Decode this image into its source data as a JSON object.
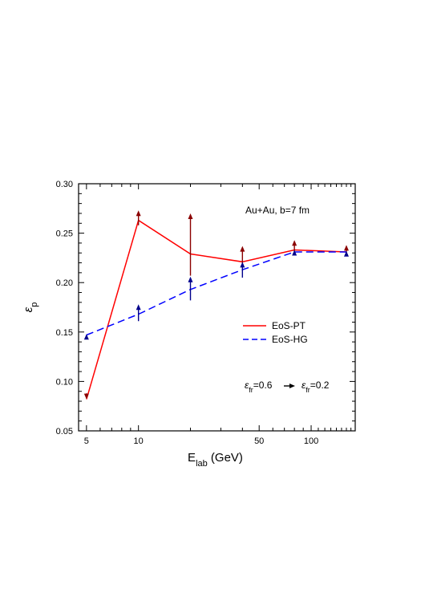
{
  "chart_data": {
    "type": "line",
    "xscale": "log",
    "xlim": [
      4.5,
      180
    ],
    "ylim": [
      0.05,
      0.3
    ],
    "xlabel": {
      "main": "E",
      "sub": "lab",
      "rest": " (GeV)"
    },
    "ylabel": {
      "main": "ε",
      "sub": "p"
    },
    "x_tick_labels": [
      {
        "value": 5,
        "label": "5"
      },
      {
        "value": 10,
        "label": "10"
      },
      {
        "value": 50,
        "label": "50"
      },
      {
        "value": 100,
        "label": "100"
      }
    ],
    "y_tick_labels": [
      {
        "value": 0.05,
        "label": "0.05"
      },
      {
        "value": 0.1,
        "label": "0.10"
      },
      {
        "value": 0.15,
        "label": "0.15"
      },
      {
        "value": 0.2,
        "label": "0.20"
      },
      {
        "value": 0.25,
        "label": "0.25"
      },
      {
        "value": 0.3,
        "label": "0.30"
      }
    ],
    "series": [
      {
        "name": "EoS-PT",
        "color": "#ff0000",
        "arrow_color": "#8b0000",
        "dash": "solid",
        "x": [
          5,
          10,
          20,
          40,
          80,
          160
        ],
        "y": [
          0.082,
          0.263,
          0.229,
          0.221,
          0.233,
          0.231
        ],
        "arrows": [
          {
            "x": 5,
            "from": 0.088,
            "to": 0.082
          },
          {
            "x": 10,
            "from": 0.258,
            "to": 0.273
          },
          {
            "x": 20,
            "from": 0.207,
            "to": 0.27
          },
          {
            "x": 40,
            "from": 0.219,
            "to": 0.237
          },
          {
            "x": 80,
            "from": 0.23,
            "to": 0.243
          },
          {
            "x": 160,
            "from": 0.23,
            "to": 0.238
          }
        ]
      },
      {
        "name": "EoS-HG",
        "color": "#0000ff",
        "arrow_color": "#00008b",
        "dash": "dashed",
        "x": [
          5,
          10,
          20,
          40,
          80,
          160
        ],
        "y": [
          0.147,
          0.168,
          0.193,
          0.213,
          0.231,
          0.231
        ],
        "arrows": [
          {
            "x": 5,
            "from": 0.143,
            "to": 0.148
          },
          {
            "x": 10,
            "from": 0.161,
            "to": 0.178
          },
          {
            "x": 20,
            "from": 0.182,
            "to": 0.206
          },
          {
            "x": 40,
            "from": 0.205,
            "to": 0.221
          },
          {
            "x": 80,
            "from": 0.229,
            "to": 0.233
          },
          {
            "x": 160,
            "from": 0.228,
            "to": 0.232
          }
        ]
      }
    ],
    "annotations": {
      "system": "Au+Au, b=7 fm",
      "freezeout": {
        "symbol": "ε",
        "sub": "fr",
        "from": "=0.6",
        "to": "=0.2"
      }
    },
    "legend": {
      "position": "center-right"
    }
  }
}
